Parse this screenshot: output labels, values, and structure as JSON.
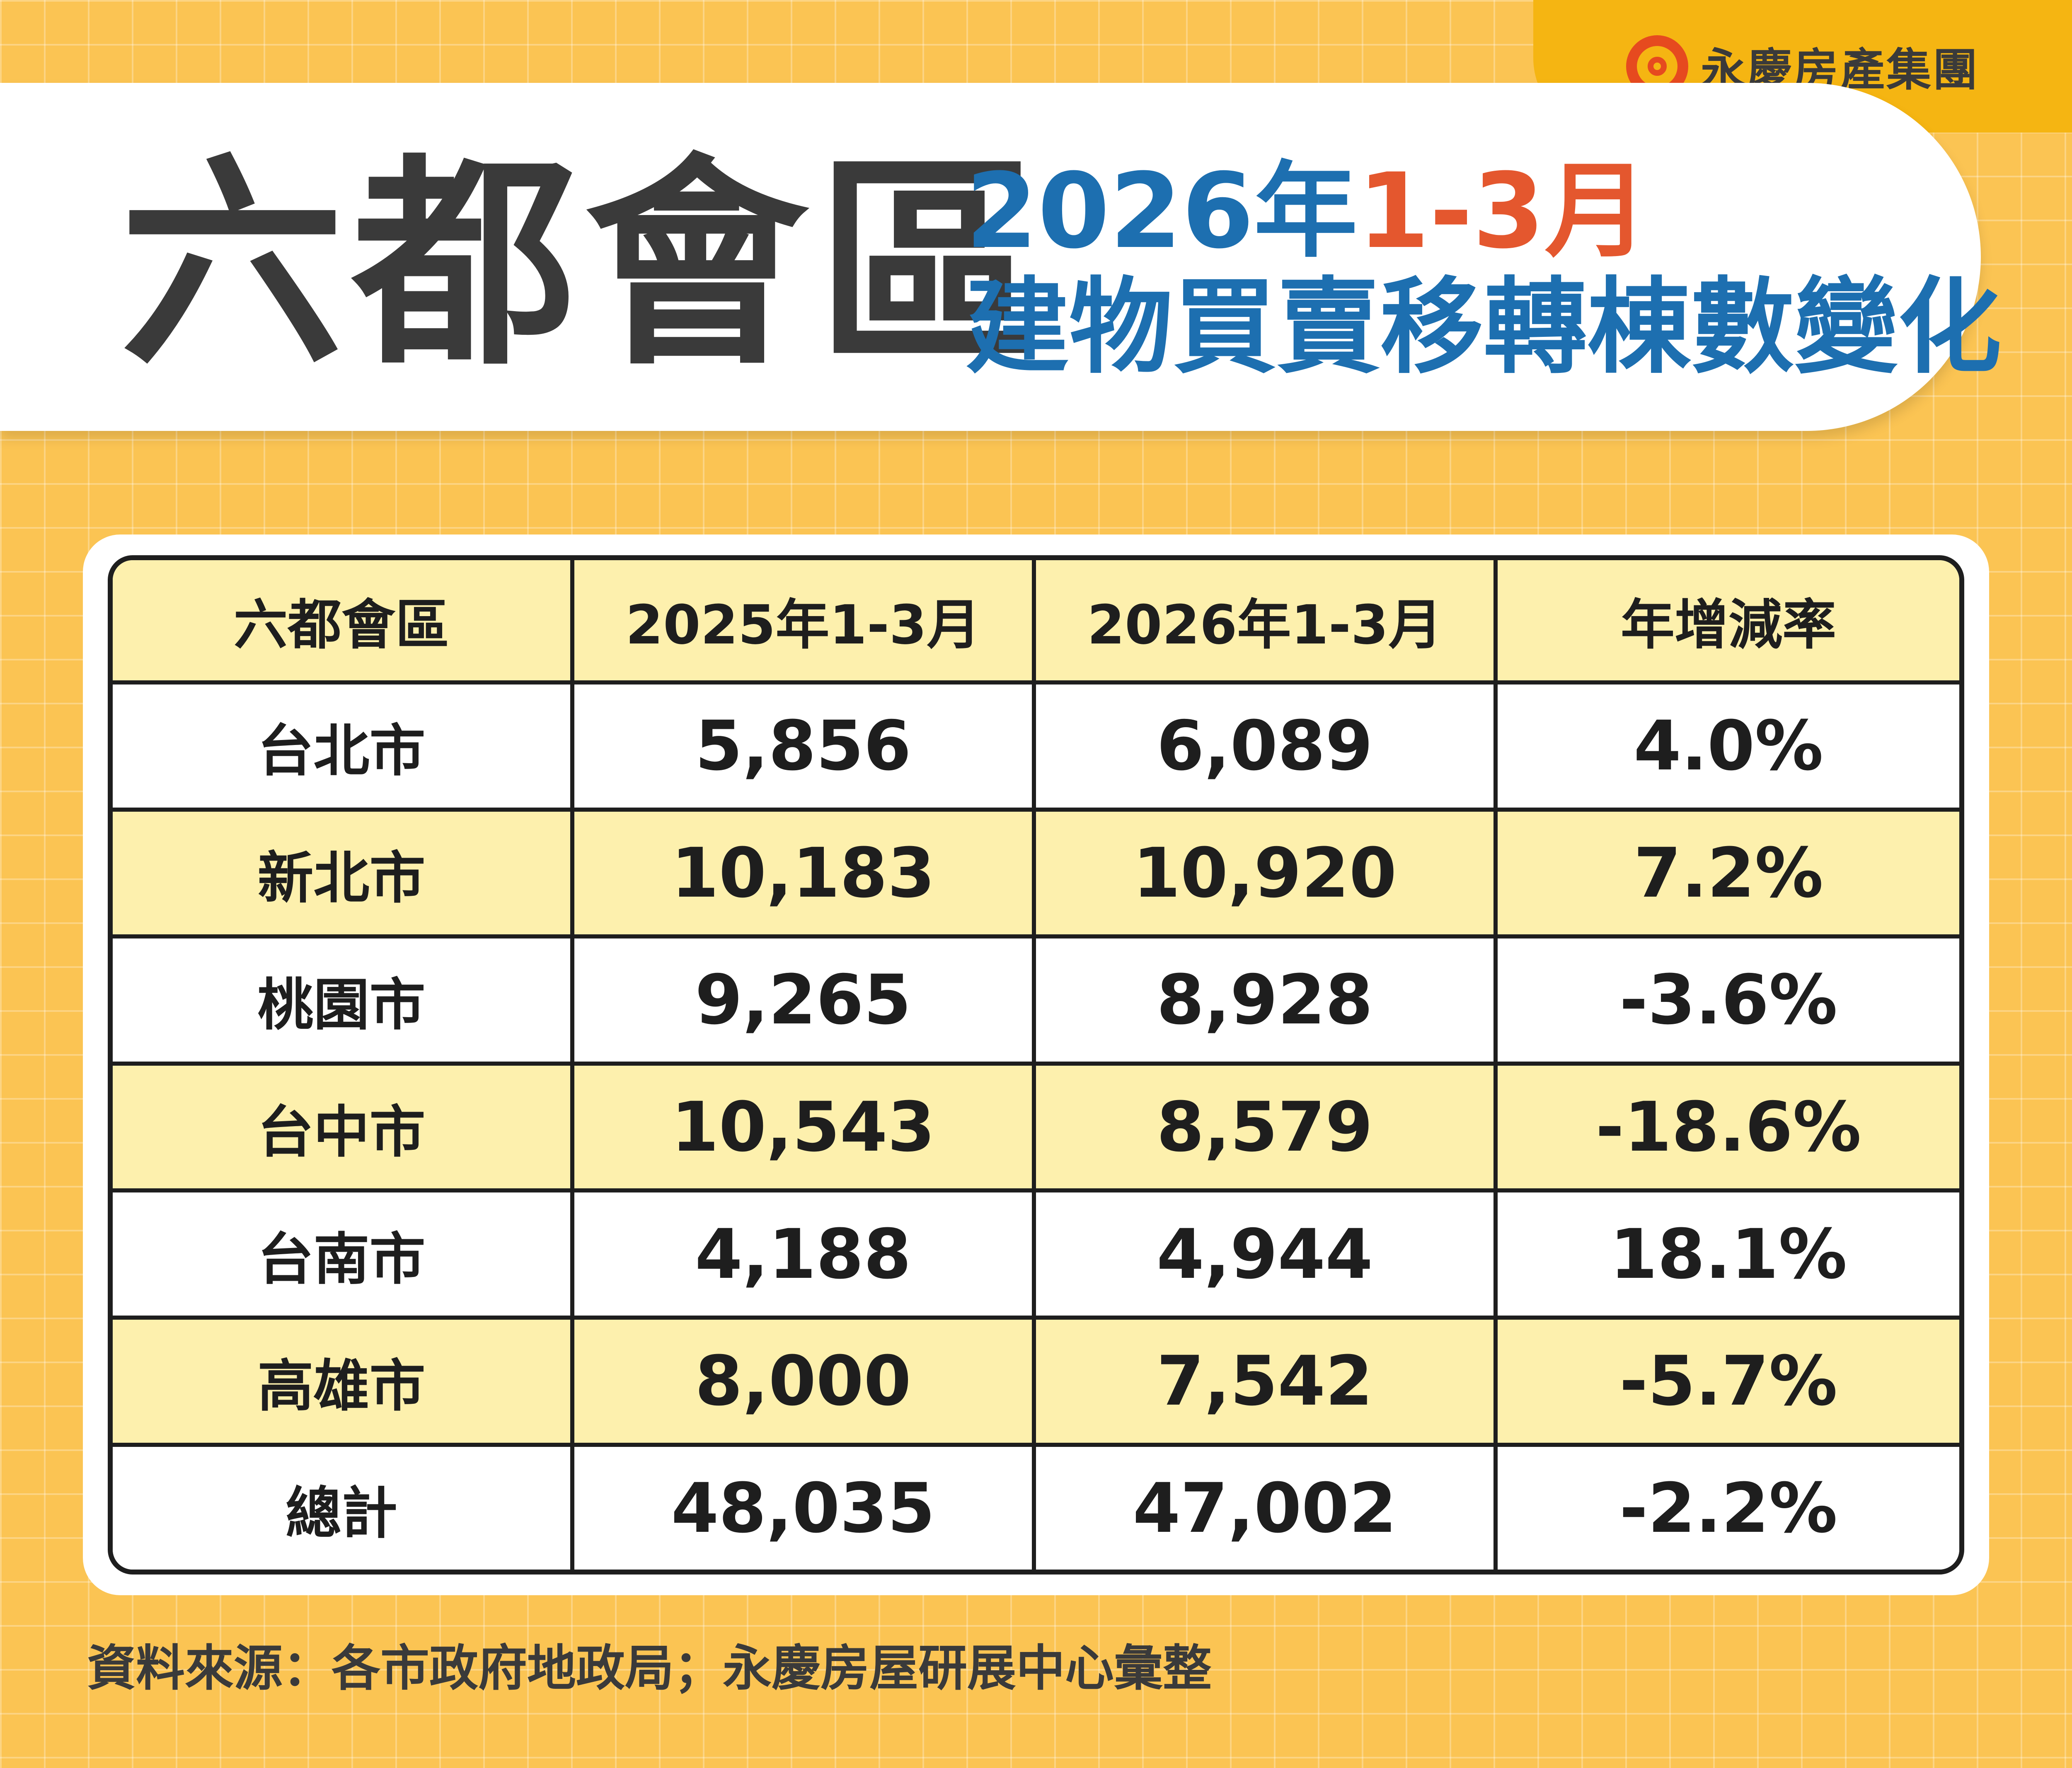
{
  "brand": {
    "logo_text": "永慶房產集團",
    "logo_icon": "swirl-g-logo-icon",
    "accent_color": "#e64a1f"
  },
  "title": {
    "main": "六都會區",
    "subtitle_year": "2026年",
    "subtitle_month": "1-3月",
    "subtitle_line2": "建物買賣移轉棟數變化",
    "main_color": "#3a3a3a",
    "subtitle_color": "#1d6fb0",
    "month_color": "#e4572e"
  },
  "table": {
    "headers": [
      "六都會區",
      "2025年1-3月",
      "2026年1-3月",
      "年增減率"
    ],
    "rows": [
      {
        "city": "台北市",
        "y2025": "5,856",
        "y2026": "6,089",
        "rate": "4.0%"
      },
      {
        "city": "新北市",
        "y2025": "10,183",
        "y2026": "10,920",
        "rate": "7.2%"
      },
      {
        "city": "桃園市",
        "y2025": "9,265",
        "y2026": "8,928",
        "rate": "-3.6%"
      },
      {
        "city": "台中市",
        "y2025": "10,543",
        "y2026": "8,579",
        "rate": "-18.6%"
      },
      {
        "city": "台南市",
        "y2025": "4,188",
        "y2026": "4,944",
        "rate": "18.1%"
      },
      {
        "city": "高雄市",
        "y2025": "8,000",
        "y2026": "7,542",
        "rate": "-5.7%"
      },
      {
        "city": "總計",
        "y2025": "48,035",
        "y2026": "47,002",
        "rate": "-2.2%"
      }
    ],
    "header_color": "#fdf0ad"
  },
  "source": "資料來源：各市政府地政局；永慶房屋研展中心彙整",
  "colors": {
    "background": "#fbc453",
    "logo_tab": "#f5b512"
  }
}
